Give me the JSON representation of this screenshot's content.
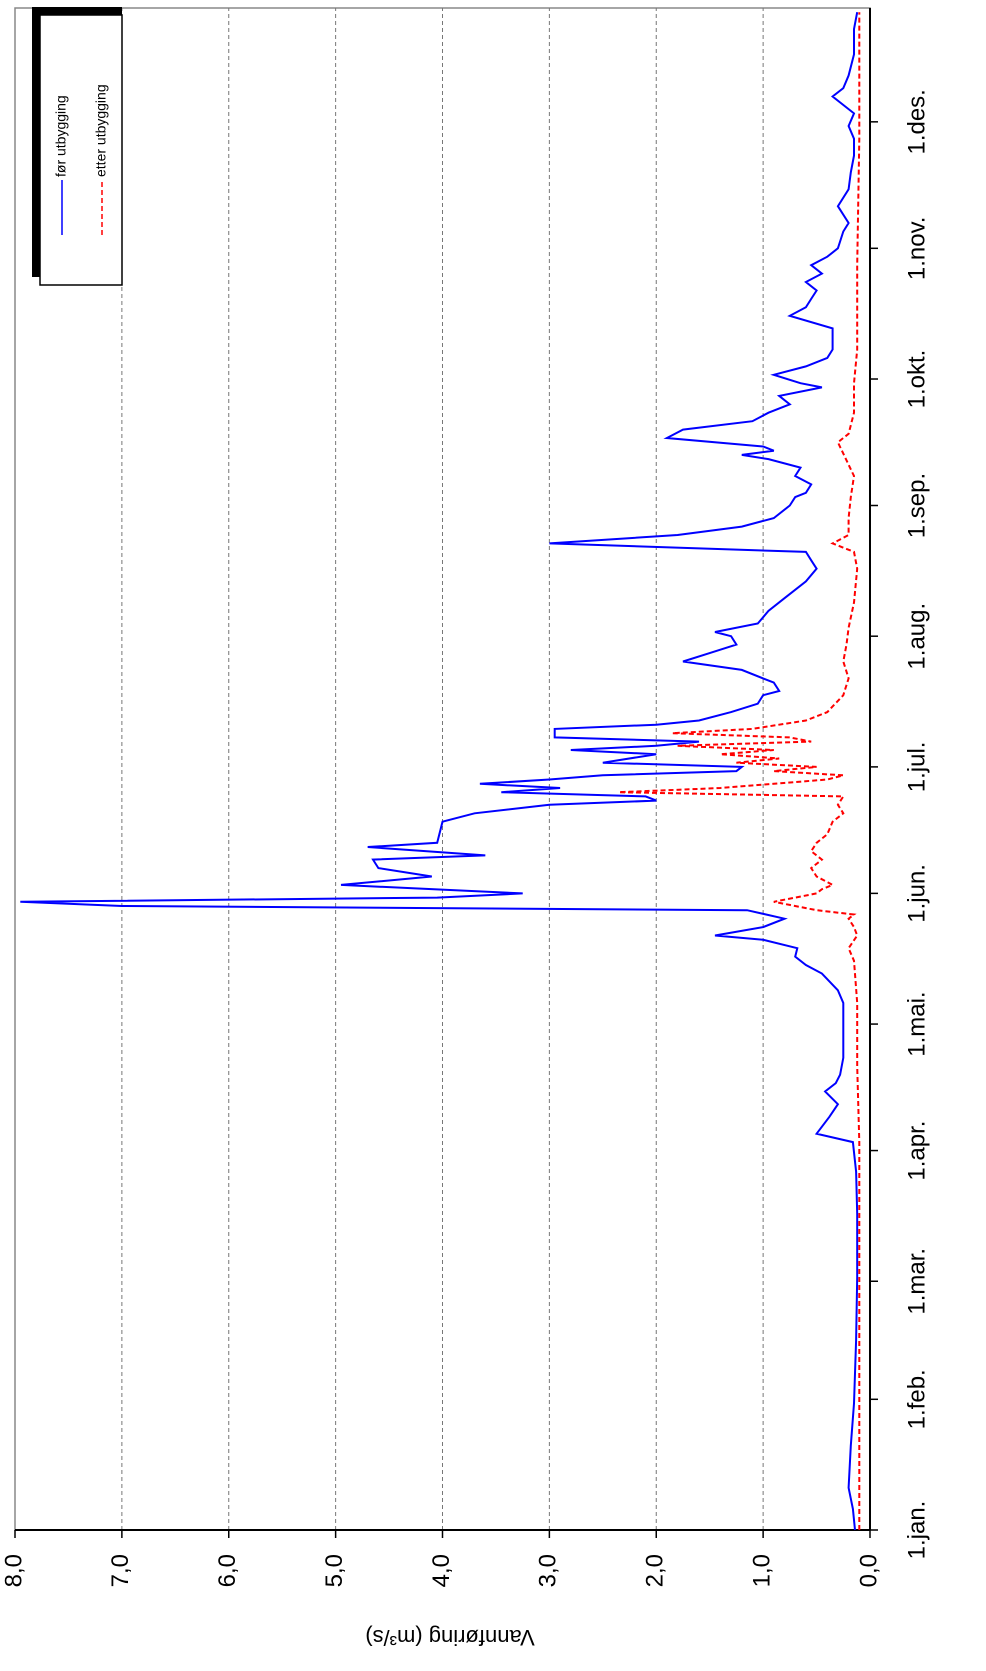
{
  "chart_data": {
    "type": "line",
    "y_label": "Vannføring (m³/s)",
    "xlim": [
      0,
      361
    ],
    "ylim": [
      0,
      8
    ],
    "xticks": [
      {
        "value": 0,
        "label": "1.jan."
      },
      {
        "value": 31,
        "label": "1.feb."
      },
      {
        "value": 59,
        "label": "1.mar."
      },
      {
        "value": 90,
        "label": "1.apr."
      },
      {
        "value": 120,
        "label": "1.mai."
      },
      {
        "value": 151,
        "label": "1.jun."
      },
      {
        "value": 181,
        "label": "1.jul."
      },
      {
        "value": 212,
        "label": "1.aug."
      },
      {
        "value": 243,
        "label": "1.sep."
      },
      {
        "value": 273,
        "label": "1.okt."
      },
      {
        "value": 304,
        "label": "1.nov."
      },
      {
        "value": 334,
        "label": "1.des."
      }
    ],
    "yticks": [
      {
        "value": 0,
        "label": "0,0"
      },
      {
        "value": 1,
        "label": "1,0"
      },
      {
        "value": 2,
        "label": "2,0"
      },
      {
        "value": 3,
        "label": "3,0"
      },
      {
        "value": 4,
        "label": "4,0"
      },
      {
        "value": 5,
        "label": "5,0"
      },
      {
        "value": 6,
        "label": "6,0"
      },
      {
        "value": 7,
        "label": "7,0"
      },
      {
        "value": 8,
        "label": "8,0"
      }
    ],
    "grid": true,
    "legend": "top-right",
    "series": [
      {
        "name": "før utbygging",
        "color": "#0000ff",
        "dash": false,
        "x": [
          0,
          5,
          10,
          20,
          30,
          45,
          60,
          75,
          85,
          92,
          94,
          98,
          101,
          104,
          106,
          108,
          112,
          125,
          128,
          132,
          134,
          136,
          138,
          140,
          141,
          143,
          145,
          147,
          148,
          149,
          150,
          151,
          153,
          155,
          157,
          159,
          160,
          162,
          163,
          168,
          170,
          172,
          173,
          174,
          175,
          176,
          177,
          178,
          179,
          180,
          181,
          182,
          184,
          185,
          186,
          187,
          188,
          190,
          191,
          192,
          194,
          196,
          198,
          199,
          201,
          202,
          204,
          206,
          208,
          210,
          212,
          213,
          215,
          218,
          221,
          225,
          228,
          230,
          232,
          234,
          236,
          238,
          240,
          243,
          245,
          246,
          248,
          250,
          252,
          254,
          255,
          256,
          257,
          259,
          261,
          263,
          265,
          267,
          269,
          271,
          272,
          274,
          276,
          278,
          280,
          285,
          288,
          290,
          292,
          294,
          296,
          298,
          300,
          302,
          304,
          308,
          310,
          314,
          318,
          322,
          326,
          330,
          333,
          336,
          340,
          342,
          345,
          350,
          356,
          360
        ],
        "values": [
          0.14,
          0.16,
          0.2,
          0.18,
          0.15,
          0.13,
          0.12,
          0.12,
          0.13,
          0.16,
          0.5,
          0.38,
          0.3,
          0.42,
          0.32,
          0.28,
          0.25,
          0.25,
          0.3,
          0.45,
          0.6,
          0.7,
          0.68,
          1.0,
          1.45,
          1.0,
          0.8,
          1.15,
          7.0,
          7.95,
          4.05,
          3.25,
          4.95,
          4.1,
          4.6,
          4.65,
          3.6,
          4.7,
          4.05,
          4.0,
          3.7,
          3.0,
          2.0,
          2.1,
          3.45,
          2.9,
          3.65,
          3.0,
          2.5,
          1.25,
          1.2,
          2.5,
          2.0,
          2.8,
          2.0,
          1.6,
          2.95,
          2.95,
          2.0,
          1.6,
          1.3,
          1.05,
          1.0,
          0.85,
          0.9,
          1.0,
          1.2,
          1.75,
          1.5,
          1.25,
          1.3,
          1.45,
          1.05,
          0.95,
          0.8,
          0.6,
          0.5,
          0.55,
          0.6,
          3.0,
          1.8,
          1.2,
          0.9,
          0.75,
          0.7,
          0.6,
          0.55,
          0.7,
          0.65,
          0.95,
          1.2,
          0.9,
          1.0,
          1.9,
          1.75,
          1.1,
          0.95,
          0.75,
          0.85,
          0.45,
          0.65,
          0.9,
          0.6,
          0.4,
          0.35,
          0.35,
          0.75,
          0.6,
          0.55,
          0.5,
          0.6,
          0.45,
          0.55,
          0.4,
          0.3,
          0.25,
          0.2,
          0.3,
          0.2,
          0.18,
          0.15,
          0.15,
          0.2,
          0.15,
          0.35,
          0.25,
          0.2,
          0.15,
          0.15,
          0.12
        ]
      },
      {
        "name": "etter utbygging",
        "color": "#ff0000",
        "dash": true,
        "x": [
          0,
          60,
          92,
          110,
          125,
          135,
          138,
          141,
          143,
          145,
          146,
          147,
          149,
          151,
          152,
          153,
          155,
          157,
          159,
          161,
          163,
          165,
          168,
          170,
          172,
          174,
          175,
          176,
          178,
          179,
          180,
          181,
          182,
          183,
          184,
          185,
          186,
          187,
          188,
          189,
          190,
          192,
          194,
          198,
          202,
          206,
          210,
          214,
          220,
          228,
          232,
          234,
          236,
          240,
          245,
          250,
          258,
          260,
          265,
          272,
          280,
          300,
          330,
          360
        ],
        "values": [
          0.1,
          0.1,
          0.1,
          0.12,
          0.12,
          0.15,
          0.2,
          0.12,
          0.15,
          0.2,
          0.15,
          0.5,
          0.9,
          0.5,
          0.45,
          0.35,
          0.5,
          0.55,
          0.45,
          0.55,
          0.5,
          0.4,
          0.35,
          0.25,
          0.3,
          0.25,
          2.35,
          1.4,
          0.4,
          0.25,
          0.9,
          0.5,
          1.25,
          0.85,
          1.4,
          0.9,
          1.8,
          0.55,
          0.75,
          1.85,
          1.1,
          0.6,
          0.4,
          0.25,
          0.2,
          0.25,
          0.22,
          0.2,
          0.15,
          0.12,
          0.15,
          0.35,
          0.2,
          0.2,
          0.18,
          0.15,
          0.3,
          0.2,
          0.15,
          0.15,
          0.12,
          0.12,
          0.1,
          0.1
        ]
      }
    ]
  }
}
